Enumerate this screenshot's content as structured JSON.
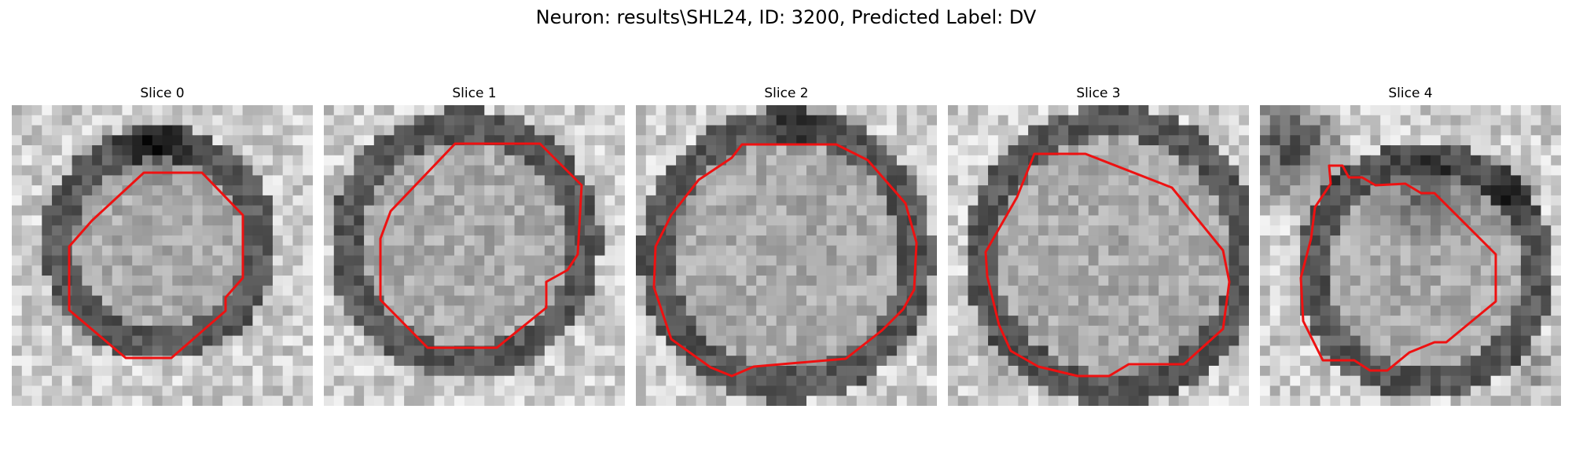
{
  "figure": {
    "title": "Neuron: results\\SHL24, ID: 3200, Predicted Label: DV",
    "contour_color": "#ee1111",
    "panels": [
      {
        "title": "Slice 0"
      },
      {
        "title": "Slice 1"
      },
      {
        "title": "Slice 2"
      },
      {
        "title": "Slice 3"
      },
      {
        "title": "Slice 4"
      }
    ]
  }
}
